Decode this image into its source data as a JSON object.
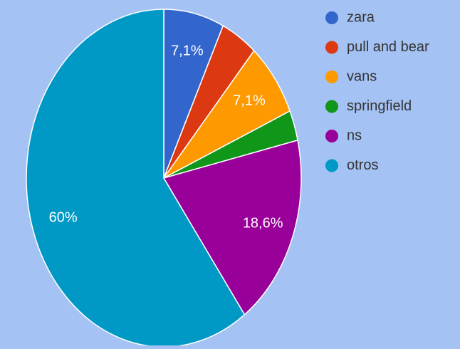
{
  "chart_data": {
    "type": "pie",
    "categories": [
      "zara",
      "pull and bear",
      "vans",
      "springfield",
      "ns",
      "otros"
    ],
    "values": [
      7.1,
      4.3,
      7.1,
      2.9,
      18.6,
      60
    ],
    "value_labels": [
      "7,1%",
      null,
      "7,1%",
      null,
      "18,6%",
      "60%"
    ],
    "colors": [
      "#3366cc",
      "#dc3912",
      "#ff9900",
      "#109618",
      "#990099",
      "#0099c6"
    ],
    "legend": "right"
  }
}
